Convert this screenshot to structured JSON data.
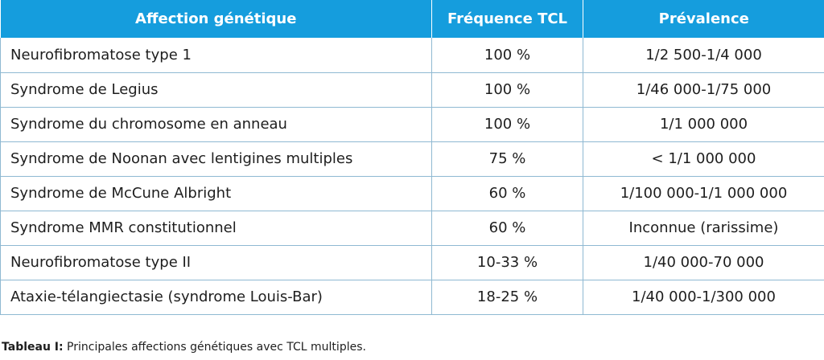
{
  "table": {
    "headers": [
      "Affection génétique",
      "Fréquence TCL",
      "Prévalence"
    ],
    "rows": [
      {
        "condition": "Neurofibromatose type 1",
        "frequency": "100 %",
        "prevalence": "1/2 500-1/4 000"
      },
      {
        "condition": "Syndrome de Legius",
        "frequency": "100 %",
        "prevalence": "1/46 000-1/75 000"
      },
      {
        "condition": "Syndrome du chromosome en anneau",
        "frequency": "100 %",
        "prevalence": "1/1 000 000"
      },
      {
        "condition": "Syndrome de Noonan avec lentigines multiples",
        "frequency": "75 %",
        "prevalence": "< 1/1 000 000"
      },
      {
        "condition": "Syndrome de McCune Albright",
        "frequency": "60 %",
        "prevalence": "1/100 000-1/1 000 000"
      },
      {
        "condition": "Syndrome MMR constitutionnel",
        "frequency": "60 %",
        "prevalence": "Inconnue (rarissime)"
      },
      {
        "condition": "Neurofibromatose type II",
        "frequency": "10-33 %",
        "prevalence": "1/40 000-70 000"
      },
      {
        "condition": "Ataxie-télangiectasie (syndrome Louis-Bar)",
        "frequency": "18-25 %",
        "prevalence": "1/40 000-1/300 000"
      }
    ]
  },
  "caption": {
    "label": "Tableau I:",
    "text": " Principales affections génétiques avec TCL multiples."
  },
  "colors": {
    "header_bg": "#159ddd",
    "header_text": "#ffffff",
    "grid": "#8fb9d2",
    "body_text": "#1e1e1e"
  }
}
